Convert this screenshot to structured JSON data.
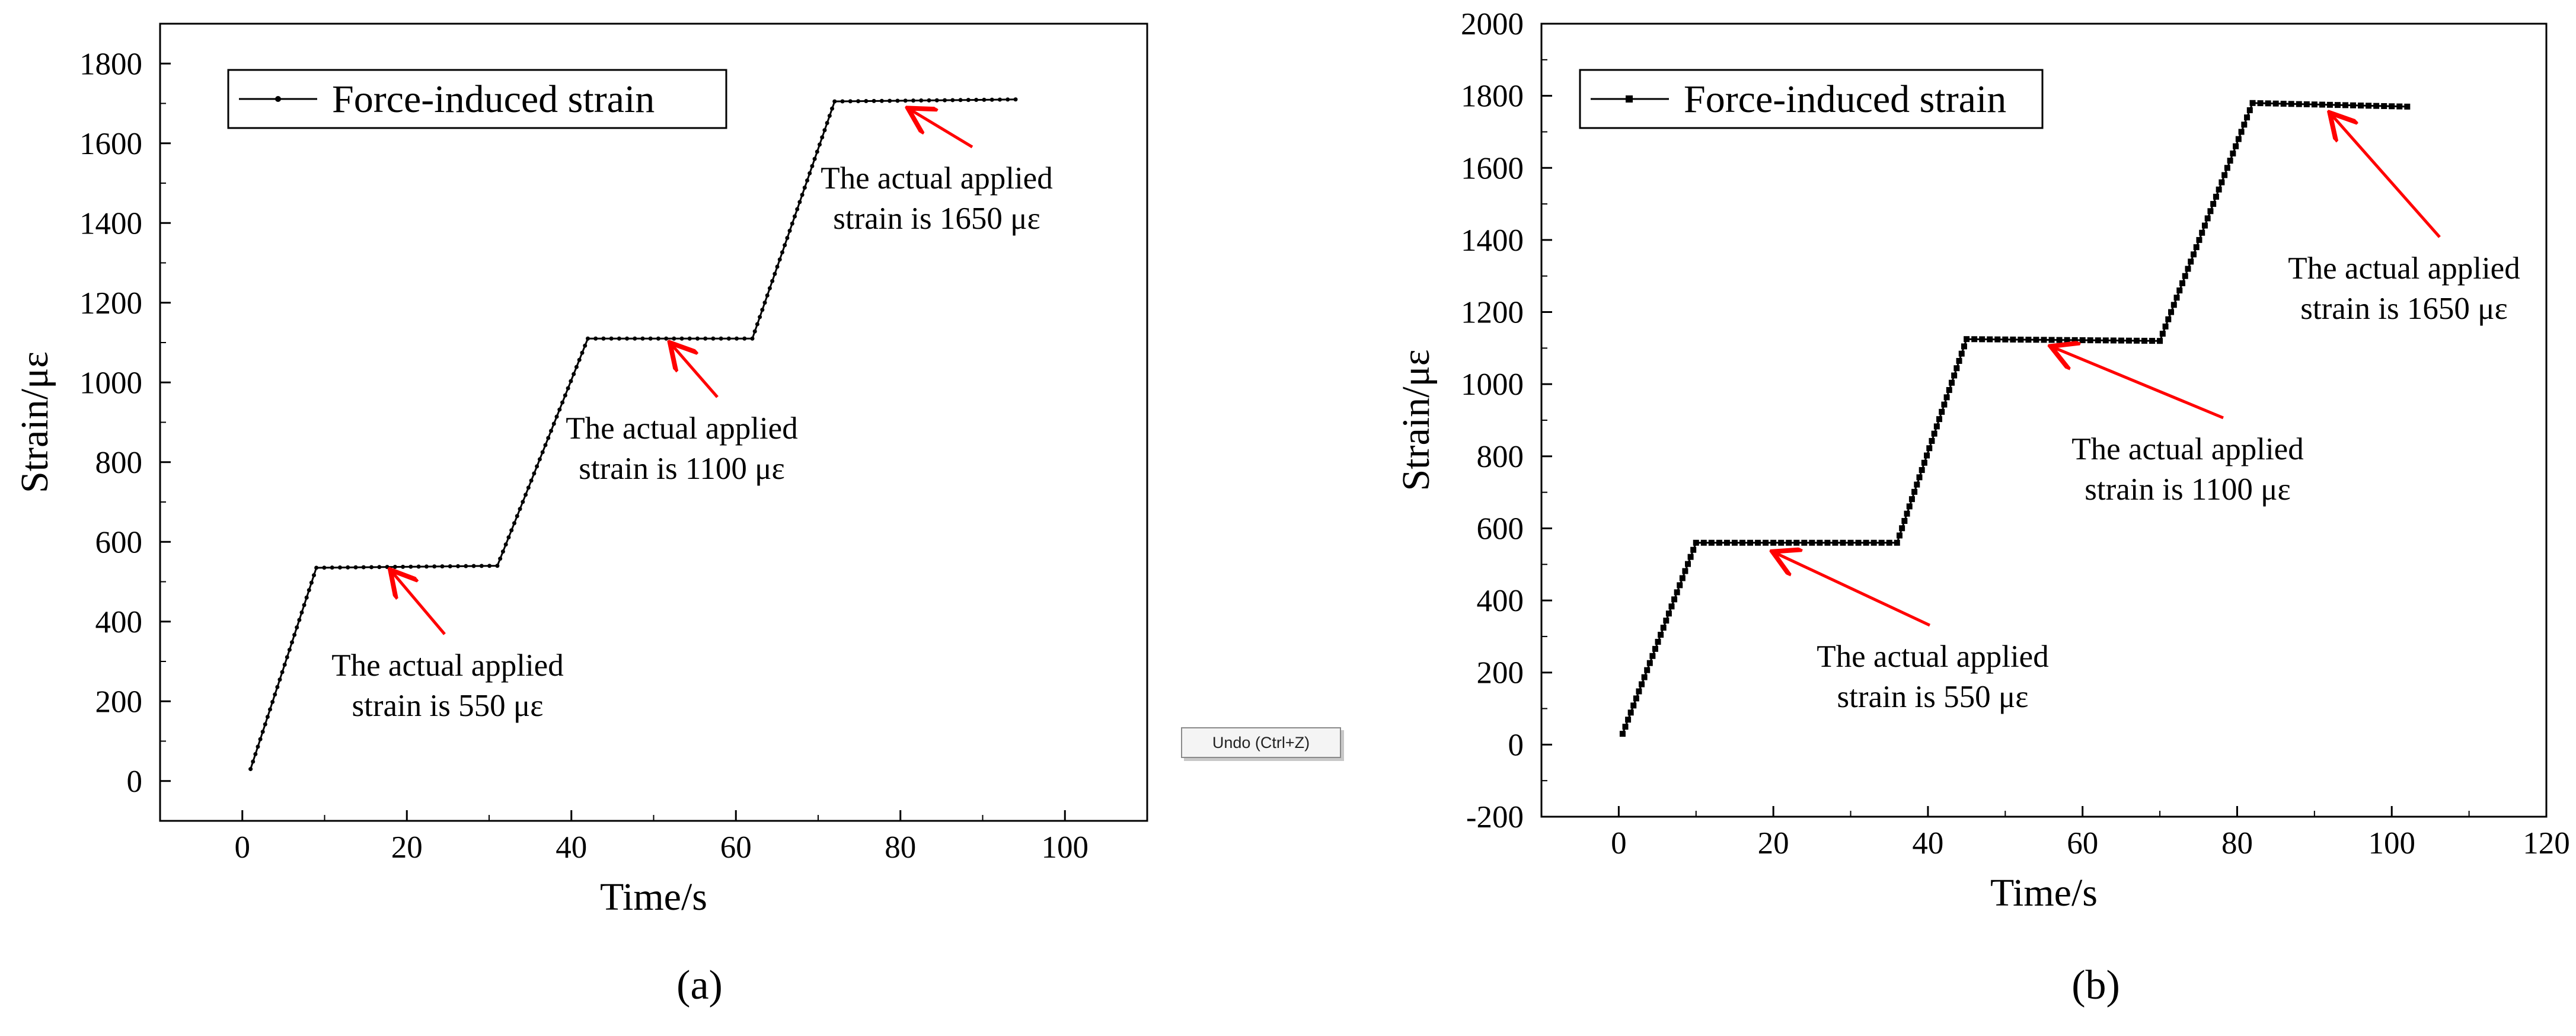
{
  "tooltip": "Undo (Ctrl+Z)",
  "colors": {
    "series": "#000000",
    "arrow": "#ff0000"
  },
  "chart_data": [
    {
      "type": "line",
      "caption": "(a)",
      "xlabel": "Time/s",
      "ylabel": "Strain/με",
      "xlim": [
        -10,
        110
      ],
      "ylim": [
        -100,
        1900
      ],
      "xticks": [
        0,
        20,
        40,
        60,
        80,
        100
      ],
      "yticks": [
        0,
        200,
        400,
        600,
        800,
        1000,
        1200,
        1400,
        1600,
        1800
      ],
      "legend": {
        "label": "Force-induced strain",
        "position": "top-left"
      },
      "series": [
        {
          "name": "Force-induced strain",
          "x": [
            1,
            9,
            31,
            42,
            62,
            72,
            94
          ],
          "y": [
            30,
            535,
            540,
            1110,
            1110,
            1705,
            1710
          ]
        }
      ],
      "annotations": [
        {
          "line1": "The actual applied",
          "line2": "strain is 550 με",
          "target_x": 18,
          "target_y": 545
        },
        {
          "line1": "The actual applied",
          "line2": "strain is 1100 με",
          "target_x": 52,
          "target_y": 1115
        },
        {
          "line1": "The actual applied",
          "line2": "strain is 1650 με",
          "target_x": 81,
          "target_y": 1705
        }
      ]
    },
    {
      "type": "line",
      "caption": "(b)",
      "xlabel": "Time/s",
      "ylabel": "Strain/με",
      "xlim": [
        -10,
        120
      ],
      "ylim": [
        -200,
        2000
      ],
      "xticks": [
        0,
        20,
        40,
        60,
        80,
        100,
        120
      ],
      "yticks": [
        -200,
        0,
        200,
        400,
        600,
        800,
        1000,
        1200,
        1400,
        1600,
        1800,
        2000
      ],
      "legend": {
        "label": "Force-induced strain",
        "position": "top-left"
      },
      "series": [
        {
          "name": "Force-induced strain",
          "x": [
            0.5,
            10,
            36,
            45,
            70,
            82,
            102
          ],
          "y": [
            30,
            560,
            560,
            1125,
            1120,
            1780,
            1770
          ]
        }
      ],
      "annotations": [
        {
          "line1": "The actual applied",
          "line2": "strain is 550 με",
          "target_x": 20,
          "target_y": 555
        },
        {
          "line1": "The actual applied",
          "line2": "strain is 1100 με",
          "target_x": 56,
          "target_y": 1125
        },
        {
          "line1": "The actual applied",
          "line2": "strain is 1650 με",
          "target_x": 92,
          "target_y": 1770
        }
      ]
    }
  ]
}
